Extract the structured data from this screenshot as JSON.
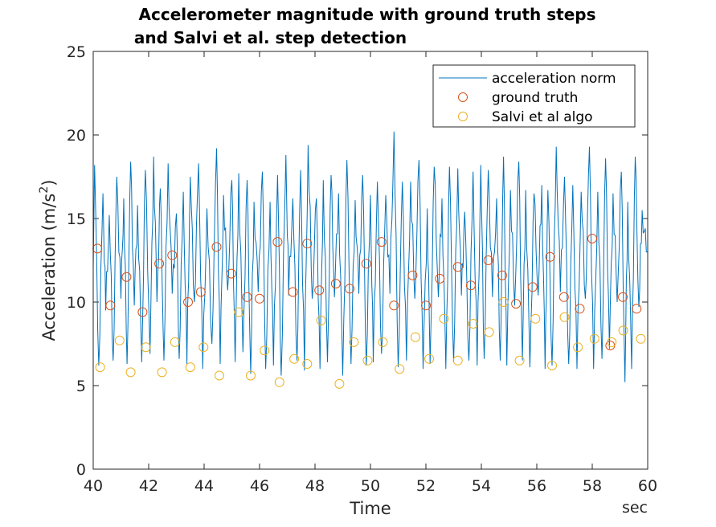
{
  "chart_data": {
    "type": "line",
    "title_line1": "Accelerometer magnitude with ground truth steps",
    "title_line2": " and Salvi et al. step detection",
    "xlabel": "Time",
    "xunit": "sec",
    "ylabel_main": "Acceleration (m/s",
    "ylabel_sup": "2",
    "ylabel_close": ")",
    "xlim": [
      40,
      60
    ],
    "ylim": [
      0,
      25
    ],
    "xticks": [
      40,
      42,
      44,
      46,
      48,
      50,
      52,
      54,
      56,
      58,
      60
    ],
    "yticks": [
      0,
      5,
      10,
      15,
      20,
      25
    ],
    "legend_position": "top-right",
    "colors": {
      "acceleration": "#0072bd",
      "ground_truth": "#d95319",
      "salvi": "#edb120"
    },
    "series": [
      {
        "name": "acceleration norm",
        "type": "line",
        "peaks": [
          [
            40.05,
            18.2
          ],
          [
            40.35,
            16.5
          ],
          [
            40.58,
            15.2
          ],
          [
            40.85,
            17.5
          ],
          [
            41.1,
            16.2
          ],
          [
            41.35,
            18.4
          ],
          [
            41.6,
            15.8
          ],
          [
            41.88,
            17.9
          ],
          [
            42.18,
            18.7
          ],
          [
            42.42,
            16.8
          ],
          [
            42.7,
            18.3
          ],
          [
            43.0,
            15.3
          ],
          [
            43.25,
            16.6
          ],
          [
            43.5,
            17.5
          ],
          [
            43.8,
            18.3
          ],
          [
            44.1,
            15.6
          ],
          [
            44.45,
            19.2
          ],
          [
            44.7,
            16.4
          ],
          [
            45.0,
            17.3
          ],
          [
            45.25,
            17.7
          ],
          [
            45.55,
            17.3
          ],
          [
            45.8,
            16.0
          ],
          [
            46.1,
            17.8
          ],
          [
            46.38,
            16.0
          ],
          [
            46.65,
            17.6
          ],
          [
            46.95,
            18.8
          ],
          [
            47.2,
            16.2
          ],
          [
            47.48,
            17.9
          ],
          [
            47.75,
            19.4
          ],
          [
            48.05,
            16.2
          ],
          [
            48.3,
            17.3
          ],
          [
            48.58,
            17.6
          ],
          [
            48.85,
            16.5
          ],
          [
            49.15,
            18.5
          ],
          [
            49.45,
            16.1
          ],
          [
            49.72,
            17.6
          ],
          [
            50.0,
            16.4
          ],
          [
            50.25,
            17.2
          ],
          [
            50.55,
            16.4
          ],
          [
            50.85,
            20.2
          ],
          [
            51.15,
            17.2
          ],
          [
            51.45,
            17.2
          ],
          [
            51.75,
            18.5
          ],
          [
            52.05,
            15.6
          ],
          [
            52.3,
            18.1
          ],
          [
            52.58,
            16.2
          ],
          [
            52.85,
            18.1
          ],
          [
            53.15,
            18.0
          ],
          [
            53.4,
            15.4
          ],
          [
            53.7,
            17.8
          ],
          [
            53.98,
            18.2
          ],
          [
            54.25,
            17.9
          ],
          [
            54.55,
            16.2
          ],
          [
            54.8,
            18.7
          ],
          [
            55.05,
            16.7
          ],
          [
            55.35,
            18.4
          ],
          [
            55.6,
            16.7
          ],
          [
            55.9,
            16.5
          ],
          [
            56.18,
            17.0
          ],
          [
            56.4,
            16.7
          ],
          [
            56.7,
            19.3
          ],
          [
            57.0,
            17.5
          ],
          [
            57.3,
            17.0
          ],
          [
            57.6,
            16.6
          ],
          [
            57.9,
            19.3
          ],
          [
            58.2,
            16.6
          ],
          [
            58.48,
            18.6
          ],
          [
            58.75,
            16.5
          ],
          [
            59.05,
            17.8
          ],
          [
            59.28,
            16.0
          ],
          [
            59.55,
            18.7
          ],
          [
            59.8,
            15.5
          ]
        ],
        "troughs": [
          [
            40.2,
            6.2
          ],
          [
            40.45,
            9.5
          ],
          [
            40.72,
            6.5
          ],
          [
            41.0,
            10.2
          ],
          [
            41.22,
            6.3
          ],
          [
            41.48,
            9.8
          ],
          [
            41.75,
            6.4
          ],
          [
            42.05,
            6.9
          ],
          [
            42.3,
            10.0
          ],
          [
            42.55,
            6.5
          ],
          [
            42.85,
            10.5
          ],
          [
            43.1,
            6.6
          ],
          [
            43.38,
            6.3
          ],
          [
            43.65,
            10.0
          ],
          [
            43.95,
            6.0
          ],
          [
            44.28,
            7.5
          ],
          [
            44.58,
            6.3
          ],
          [
            44.85,
            10.7
          ],
          [
            45.12,
            6.4
          ],
          [
            45.4,
            7.0
          ],
          [
            45.68,
            5.7
          ],
          [
            45.95,
            10.6
          ],
          [
            46.22,
            6.0
          ],
          [
            46.5,
            6.2
          ],
          [
            46.78,
            5.6
          ],
          [
            47.05,
            10.4
          ],
          [
            47.35,
            6.5
          ],
          [
            47.62,
            5.9
          ],
          [
            47.9,
            10.2
          ],
          [
            48.18,
            6.0
          ],
          [
            48.45,
            6.4
          ],
          [
            48.7,
            10.3
          ],
          [
            49.0,
            5.6
          ],
          [
            49.3,
            6.3
          ],
          [
            49.58,
            10.5
          ],
          [
            49.85,
            6.2
          ],
          [
            50.1,
            6.4
          ],
          [
            50.4,
            6.9
          ],
          [
            50.7,
            10.5
          ],
          [
            51.0,
            6.1
          ],
          [
            51.3,
            6.5
          ],
          [
            51.6,
            10.2
          ],
          [
            51.9,
            6.0
          ],
          [
            52.15,
            6.3
          ],
          [
            52.45,
            10.3
          ],
          [
            52.72,
            6.0
          ],
          [
            53.0,
            6.4
          ],
          [
            53.28,
            10.4
          ],
          [
            53.55,
            6.5
          ],
          [
            53.85,
            6.2
          ],
          [
            54.1,
            6.6
          ],
          [
            54.4,
            10.3
          ],
          [
            54.68,
            6.5
          ],
          [
            54.92,
            6.2
          ],
          [
            55.2,
            9.8
          ],
          [
            55.48,
            6.5
          ],
          [
            55.75,
            6.1
          ],
          [
            56.05,
            10.4
          ],
          [
            56.3,
            6.0
          ],
          [
            56.55,
            6.2
          ],
          [
            56.85,
            10.6
          ],
          [
            57.15,
            6.3
          ],
          [
            57.45,
            6.0
          ],
          [
            57.75,
            10.2
          ],
          [
            58.05,
            6.0
          ],
          [
            58.35,
            6.6
          ],
          [
            58.62,
            7.2
          ],
          [
            58.9,
            10.0
          ],
          [
            59.18,
            5.2
          ],
          [
            59.42,
            6.0
          ],
          [
            59.68,
            9.7
          ],
          [
            59.95,
            13.0
          ]
        ]
      },
      {
        "name": "ground truth",
        "type": "scatter",
        "points": [
          [
            40.15,
            13.2
          ],
          [
            40.62,
            9.8
          ],
          [
            41.2,
            11.5
          ],
          [
            41.78,
            9.4
          ],
          [
            42.38,
            12.3
          ],
          [
            42.85,
            12.8
          ],
          [
            43.42,
            10.0
          ],
          [
            43.88,
            10.6
          ],
          [
            44.45,
            13.3
          ],
          [
            44.98,
            11.7
          ],
          [
            45.55,
            10.3
          ],
          [
            46.0,
            10.2
          ],
          [
            46.65,
            13.6
          ],
          [
            47.2,
            10.6
          ],
          [
            47.72,
            13.5
          ],
          [
            48.15,
            10.7
          ],
          [
            48.75,
            11.1
          ],
          [
            49.25,
            10.8
          ],
          [
            49.85,
            12.3
          ],
          [
            50.4,
            13.6
          ],
          [
            50.85,
            9.8
          ],
          [
            51.52,
            11.6
          ],
          [
            52.0,
            9.8
          ],
          [
            52.5,
            11.4
          ],
          [
            53.15,
            12.1
          ],
          [
            53.62,
            11.0
          ],
          [
            54.25,
            12.5
          ],
          [
            54.75,
            11.6
          ],
          [
            55.25,
            9.9
          ],
          [
            55.85,
            10.9
          ],
          [
            56.48,
            12.7
          ],
          [
            56.98,
            10.3
          ],
          [
            57.55,
            9.6
          ],
          [
            58.0,
            13.8
          ],
          [
            58.65,
            7.4
          ],
          [
            59.1,
            10.3
          ],
          [
            59.6,
            9.6
          ]
        ]
      },
      {
        "name": "Salvi et al algo",
        "type": "scatter",
        "points": [
          [
            40.25,
            6.1
          ],
          [
            40.95,
            7.7
          ],
          [
            41.35,
            5.8
          ],
          [
            41.9,
            7.3
          ],
          [
            42.48,
            5.8
          ],
          [
            42.95,
            7.6
          ],
          [
            43.5,
            6.1
          ],
          [
            43.98,
            7.3
          ],
          [
            44.55,
            5.6
          ],
          [
            45.25,
            9.4
          ],
          [
            45.68,
            5.6
          ],
          [
            46.18,
            7.1
          ],
          [
            46.72,
            5.2
          ],
          [
            47.25,
            6.6
          ],
          [
            47.72,
            6.3
          ],
          [
            48.22,
            8.9
          ],
          [
            48.88,
            5.1
          ],
          [
            49.4,
            7.6
          ],
          [
            49.9,
            6.5
          ],
          [
            50.45,
            7.6
          ],
          [
            51.05,
            6.0
          ],
          [
            51.62,
            7.9
          ],
          [
            52.12,
            6.6
          ],
          [
            52.65,
            9.0
          ],
          [
            53.15,
            6.5
          ],
          [
            53.7,
            8.7
          ],
          [
            54.28,
            8.2
          ],
          [
            54.8,
            10.0
          ],
          [
            55.38,
            6.5
          ],
          [
            55.95,
            9.0
          ],
          [
            56.55,
            6.2
          ],
          [
            57.0,
            9.1
          ],
          [
            57.48,
            7.3
          ],
          [
            58.08,
            7.8
          ],
          [
            58.7,
            7.6
          ],
          [
            59.12,
            8.3
          ],
          [
            59.75,
            7.8
          ]
        ]
      }
    ]
  }
}
